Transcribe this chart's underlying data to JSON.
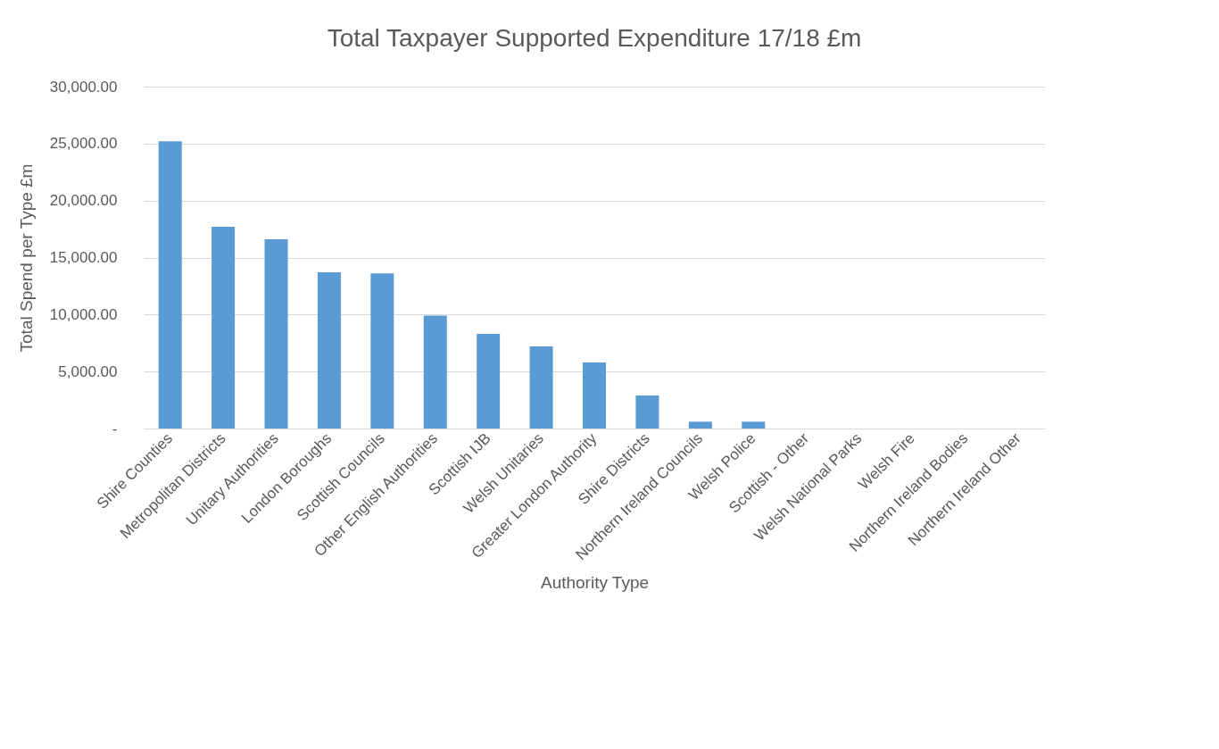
{
  "chart_data": {
    "type": "bar",
    "title": "Total Taxpayer Supported Expenditure 17/18 £m",
    "xlabel": "Authority Type",
    "ylabel": "Total Spend per Type £m",
    "categories": [
      "Shire Counties",
      "Metropolitan Districts",
      "Unitary Authorities",
      "London Boroughs",
      "Scottish Councils",
      "Other English Authorities",
      "Scottish IJB",
      "Welsh Unitaries",
      "Greater London Authority",
      "Shire Districts",
      "Northern Ireland Councils",
      "Welsh Police",
      "Scottish - Other",
      "Welsh National Parks",
      "Welsh Fire",
      "Northern Ireland Bodies",
      "Northern Ireland Other"
    ],
    "values": [
      25200,
      17700,
      16600,
      13700,
      13600,
      9900,
      8300,
      7200,
      5800,
      2900,
      600,
      600,
      0,
      0,
      0,
      0,
      0
    ],
    "color": "#5b9bd5",
    "ylim": [
      0,
      30000
    ],
    "yticks": [
      {
        "value": 0,
        "label": "-"
      },
      {
        "value": 5000,
        "label": "5,000.00"
      },
      {
        "value": 10000,
        "label": "10,000.00"
      },
      {
        "value": 15000,
        "label": "15,000.00"
      },
      {
        "value": 20000,
        "label": "20,000.00"
      },
      {
        "value": 25000,
        "label": "25,000.00"
      },
      {
        "value": 30000,
        "label": "30,000.00"
      }
    ],
    "grid": "y"
  }
}
